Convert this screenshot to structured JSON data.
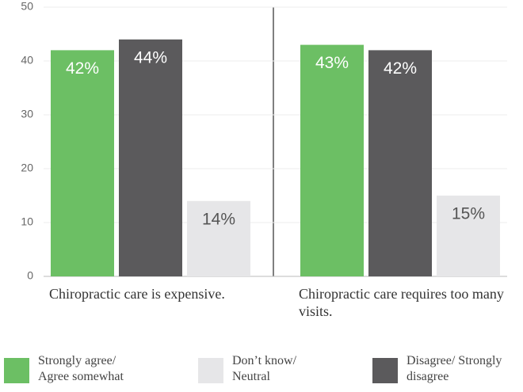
{
  "chart_data": {
    "type": "bar",
    "categories": [
      "Chiropractic care is expensive.",
      "Chiropractic care requires too many visits."
    ],
    "series": [
      {
        "name": "Strongly agree/ Agree somewhat",
        "color": "#6cbf64",
        "label_color": "#ffffff",
        "values": [
          42,
          43
        ],
        "value_labels": [
          "42%",
          "43%"
        ]
      },
      {
        "name": "Disagree/ Strongly disagree",
        "color": "#5b5a5c",
        "label_color": "#ffffff",
        "values": [
          44,
          42
        ],
        "value_labels": [
          "44%",
          "42%"
        ]
      },
      {
        "name": "Don’t know/ Neutral",
        "color": "#e6e6e8",
        "label_color": "#555555",
        "values": [
          14,
          15
        ],
        "value_labels": [
          "14%",
          "15%"
        ]
      }
    ],
    "ylim": [
      0,
      50
    ],
    "yticks": [
      0,
      10,
      20,
      30,
      40,
      50
    ],
    "grid": true
  }
}
